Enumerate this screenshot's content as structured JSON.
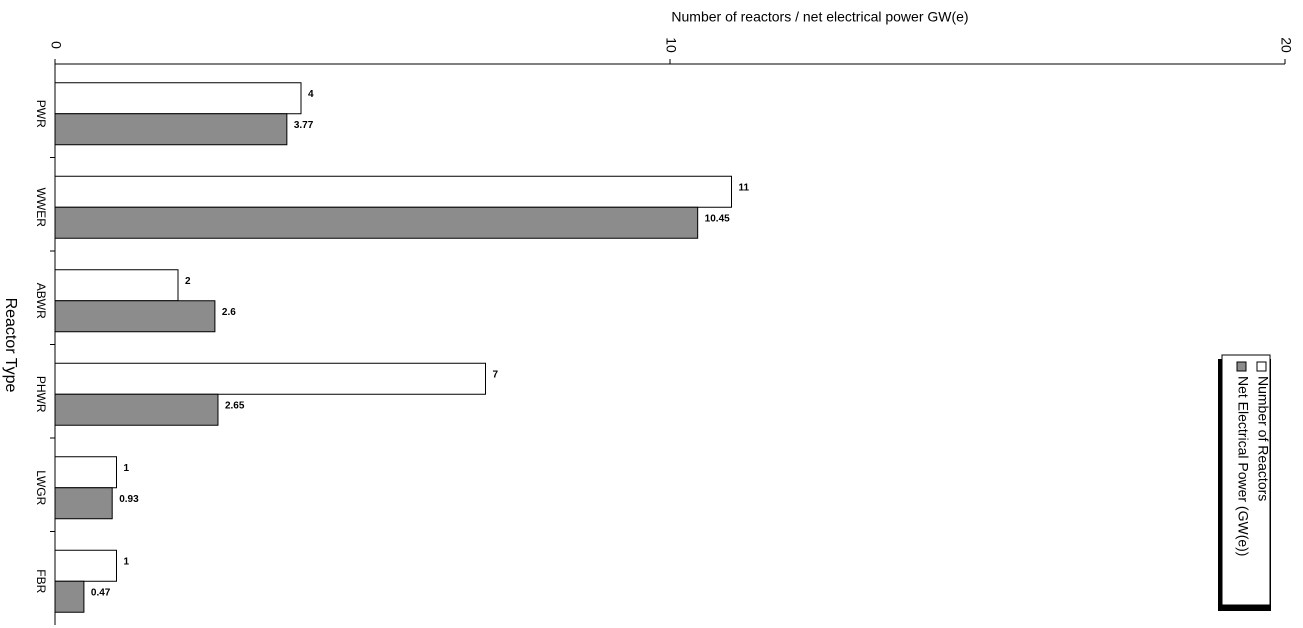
{
  "chart_data": {
    "type": "bar",
    "orientation": "horizontal",
    "title": "Number of reactors / net electrical power GW(e)",
    "y_axis_label": "Reactor Type",
    "categories": [
      "PWR",
      "WWER",
      "ABWR",
      "PHWR",
      "LWGR",
      "FBR"
    ],
    "series": [
      {
        "name": "Number of Reactors",
        "color": "#ffffff",
        "values": [
          4,
          11,
          2,
          7,
          1,
          1
        ]
      },
      {
        "name": "Net Electrical Power (GW(e))",
        "color": "#8c8c8c",
        "values": [
          3.77,
          10.45,
          2.6,
          2.65,
          0.93,
          0.47
        ]
      }
    ],
    "xlim": [
      0,
      20
    ],
    "xticks": [
      0,
      10,
      20
    ],
    "legend": "right"
  }
}
